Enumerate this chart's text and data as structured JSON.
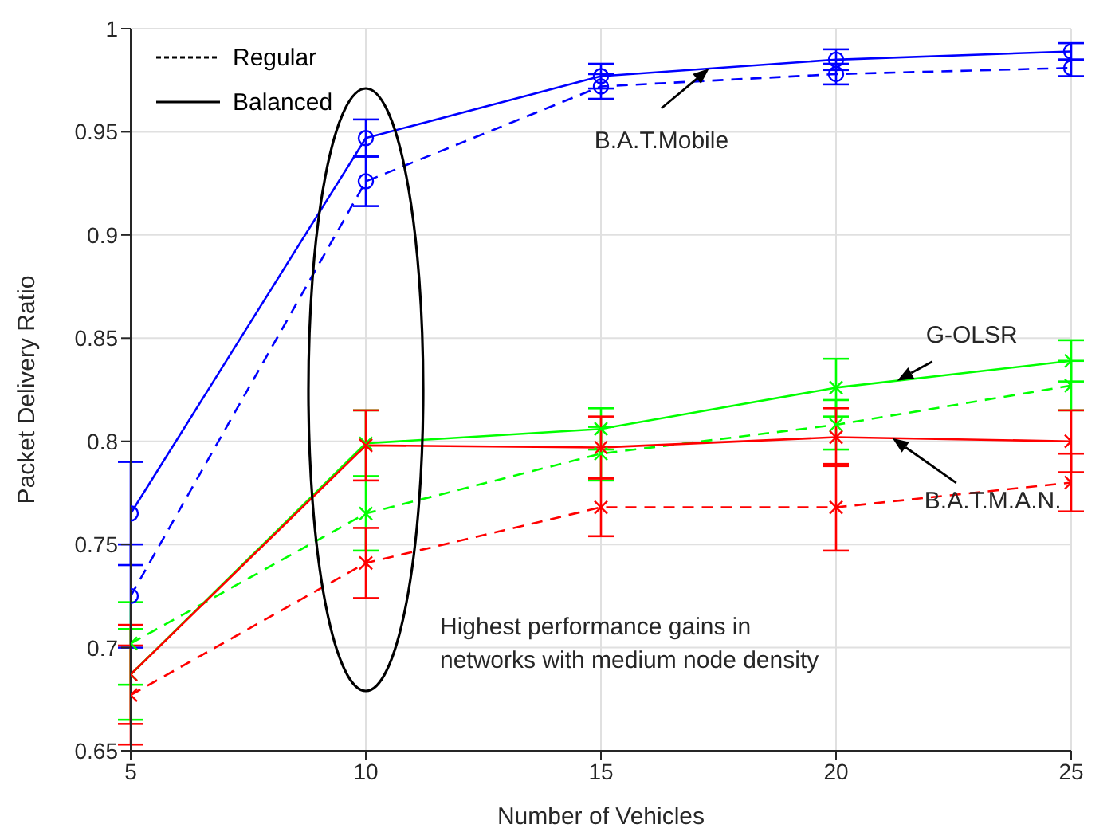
{
  "chart_data": {
    "type": "line",
    "xlabel": "Number of Vehicles",
    "ylabel": "Packet Delivery Ratio",
    "x": [
      5,
      10,
      15,
      20,
      25
    ],
    "series": [
      {
        "color": "#0000ff",
        "line_style": "dashed",
        "marker": "circle",
        "values": [
          0.725,
          0.926,
          0.972,
          0.978,
          0.981
        ],
        "errors": [
          0.025,
          0.012,
          0.006,
          0.005,
          0.004
        ]
      },
      {
        "name": "B.A.T.Mobile",
        "color": "#0000ff",
        "line_style": "solid",
        "marker": "circle",
        "values": [
          0.765,
          0.947,
          0.977,
          0.985,
          0.989
        ],
        "errors": [
          0.025,
          0.009,
          0.006,
          0.005,
          0.004
        ]
      },
      {
        "color": "#00ff00",
        "line_style": "dashed",
        "marker": "cross",
        "values": [
          0.702,
          0.765,
          0.794,
          0.808,
          0.827
        ],
        "errors": [
          0.02,
          0.018,
          0.013,
          0.012,
          0.012
        ]
      },
      {
        "name": "G-OLSR",
        "color": "#00ff00",
        "line_style": "solid",
        "marker": "cross",
        "values": [
          0.687,
          0.799,
          0.806,
          0.826,
          0.839
        ],
        "errors": [
          0.022,
          0.016,
          0.01,
          0.014,
          0.01
        ]
      },
      {
        "color": "#ff0000",
        "line_style": "dashed",
        "marker": "cross",
        "values": [
          0.677,
          0.741,
          0.768,
          0.768,
          0.78
        ],
        "errors": [
          0.024,
          0.017,
          0.014,
          0.021,
          0.014
        ]
      },
      {
        "name": "B.A.T.M.A.N.",
        "color": "#ff0000",
        "line_style": "solid",
        "marker": "cross",
        "values": [
          0.687,
          0.798,
          0.797,
          0.802,
          0.8
        ],
        "errors": [
          0.024,
          0.017,
          0.015,
          0.014,
          0.015
        ]
      }
    ],
    "xlim": [
      5,
      25
    ],
    "xticks": [
      5,
      10,
      15,
      20,
      25
    ],
    "ylim": [
      0.65,
      1
    ],
    "yticks": [
      0.65,
      0.7,
      0.75,
      0.8,
      0.85,
      0.9,
      0.95,
      1
    ],
    "grid": true,
    "annotations": [
      "Regular",
      "Balanced",
      "Highest performance gains in\nnetworks with medium node density"
    ]
  }
}
